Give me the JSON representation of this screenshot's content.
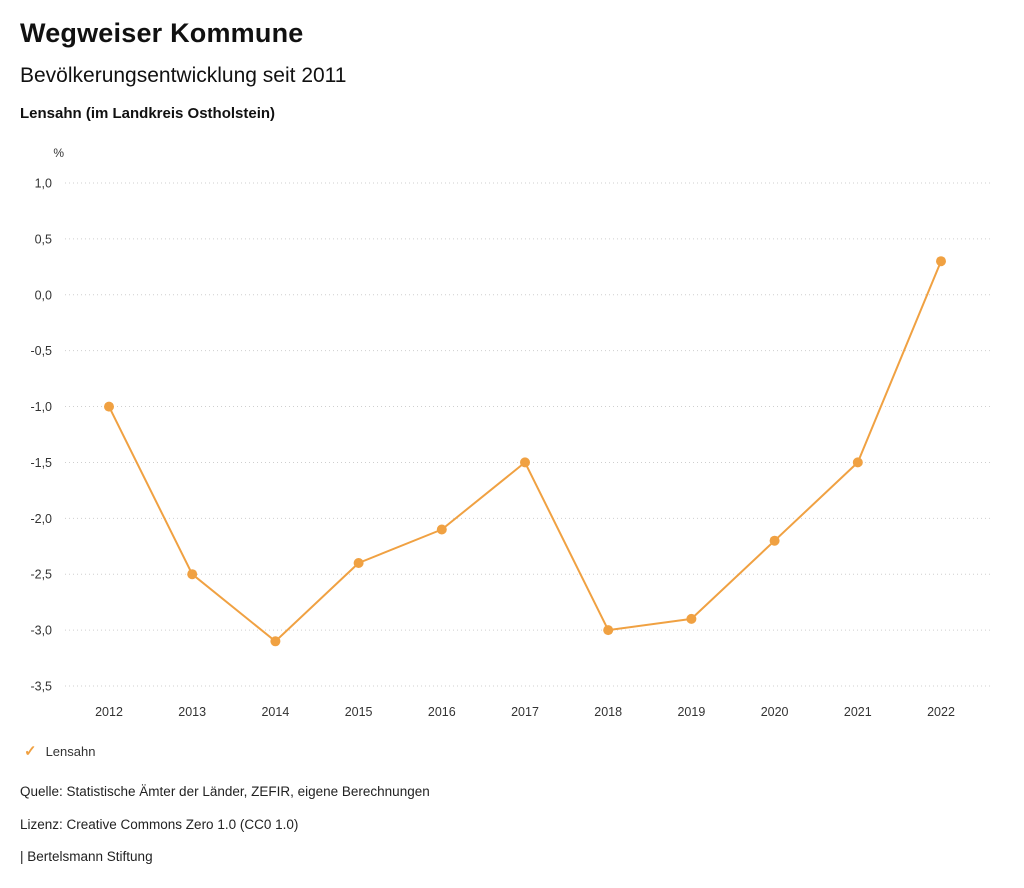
{
  "header": {
    "title": "Wegweiser Kommune",
    "subtitle": "Bevölkerungsentwicklung seit 2011",
    "location": "Lensahn (im Landkreis Ostholstein)"
  },
  "chart_data": {
    "type": "line",
    "title": "Bevölkerungsentwicklung seit 2011",
    "subtitle": "Lensahn (im Landkreis Ostholstein)",
    "unit_label": "%",
    "categories": [
      "2012",
      "2013",
      "2014",
      "2015",
      "2016",
      "2017",
      "2018",
      "2019",
      "2020",
      "2021",
      "2022"
    ],
    "series": [
      {
        "name": "Lensahn",
        "color": "#f0a142",
        "values": [
          -1.0,
          -2.5,
          -3.1,
          -2.4,
          -2.1,
          -1.5,
          -3.0,
          -2.9,
          -2.2,
          -1.5,
          0.3
        ]
      }
    ],
    "ylim": [
      -3.5,
      1.0
    ],
    "ytick_step": 0.5,
    "ytick_labels": [
      "1,0",
      "0,5",
      "0,0",
      "-0,5",
      "-1,0",
      "-1,5",
      "-2,0",
      "-2,5",
      "-3,0",
      "-3,5"
    ],
    "grid": "horizontal-dotted",
    "legend_position": "bottom-left"
  },
  "legend": {
    "items": [
      {
        "label": "Lensahn",
        "color": "#f0a142",
        "marker": "check"
      }
    ]
  },
  "footer": {
    "source": "Quelle: Statistische Ämter der Länder, ZEFIR, eigene Berechnungen",
    "license": "Lizenz: Creative Commons Zero 1.0 (CC0 1.0)",
    "attribution": "| Bertelsmann Stiftung"
  }
}
